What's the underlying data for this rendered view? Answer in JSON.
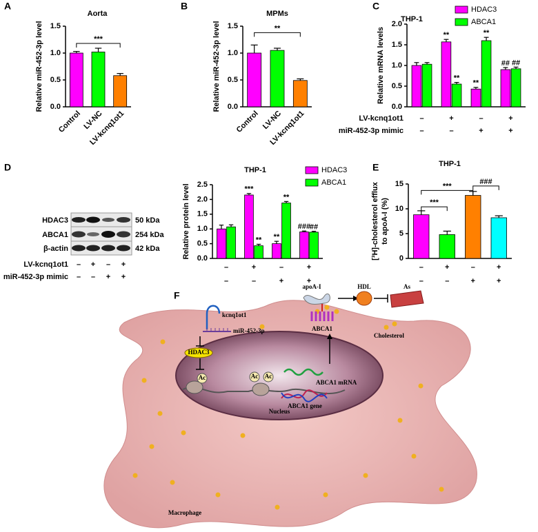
{
  "panels": [
    "A",
    "B",
    "C",
    "D",
    "E",
    "F"
  ],
  "chart_data": [
    {
      "type": "bar",
      "title": "Aorta",
      "ylabel": "Relative miR-452-3p level",
      "categories": [
        "Control",
        "LV-NC",
        "LV-kcnq1ot1"
      ],
      "values": [
        1.0,
        1.02,
        0.58
      ],
      "errors": [
        0.03,
        0.07,
        0.04
      ],
      "colors": [
        "#ff00ff",
        "#00ff00",
        "#ff8000"
      ],
      "annotations": [
        "***"
      ],
      "ylim": [
        0,
        1.5
      ],
      "yticks": [
        {
          "value": 0,
          "label": "0.0"
        },
        0.5,
        {
          "value": 1,
          "label": "1.0"
        },
        1.5
      ]
    },
    {
      "type": "bar",
      "title": "MPMs",
      "ylabel": "Relative miR-452-3p level",
      "categories": [
        "Control",
        "LV-NC",
        "LV-kcnq1ot1"
      ],
      "values": [
        1.0,
        1.05,
        0.49
      ],
      "errors": [
        0.15,
        0.04,
        0.03
      ],
      "colors": [
        "#ff00ff",
        "#00ff00",
        "#ff8000"
      ],
      "annotations": [
        "**"
      ],
      "ylim": [
        0,
        1.5
      ],
      "yticks": [
        {
          "value": 0,
          "label": "0.0"
        },
        0.5,
        {
          "value": 1,
          "label": "1.0"
        },
        1.5
      ]
    },
    {
      "type": "bar",
      "title": "THP-1",
      "ylabel": "Relative mRNA levels",
      "series": [
        {
          "name": "HDAC3",
          "color": "#ff00ff",
          "values": [
            1.0,
            1.57,
            0.43,
            0.9
          ],
          "errors": [
            0.07,
            0.06,
            0.04,
            0.05
          ],
          "marks": [
            null,
            "**",
            "**",
            "##"
          ]
        },
        {
          "name": "ABCA1",
          "color": "#00ff00",
          "values": [
            1.03,
            0.55,
            1.6,
            0.92
          ],
          "errors": [
            0.04,
            0.04,
            0.08,
            0.04
          ],
          "marks": [
            null,
            "**",
            "**",
            "##"
          ]
        }
      ],
      "treatments": [
        {
          "name": "LV-kcnq1ot1",
          "signs": [
            "–",
            "+",
            "–",
            "+"
          ]
        },
        {
          "name": "miR-452-3p mimic",
          "signs": [
            "–",
            "–",
            "+",
            "+"
          ]
        }
      ],
      "ylim": [
        0,
        2
      ],
      "yticks": [
        {
          "value": 0,
          "label": "0.0"
        },
        0.5,
        {
          "value": 1,
          "label": "1.0"
        },
        1.5,
        {
          "value": 2,
          "label": "2.0"
        }
      ]
    },
    {
      "type": "bar",
      "title": "THP-1",
      "ylabel": "Relative protein level",
      "series": [
        {
          "name": "HDAC3",
          "color": "#ff00ff",
          "values": [
            1.0,
            2.15,
            0.5,
            0.9
          ],
          "errors": [
            0.13,
            0.05,
            0.08,
            0.03
          ],
          "marks": [
            null,
            "***",
            "**",
            "###"
          ]
        },
        {
          "name": "ABCA1",
          "color": "#00ff00",
          "values": [
            1.07,
            0.43,
            1.88,
            0.89
          ],
          "errors": [
            0.07,
            0.05,
            0.05,
            0.03
          ],
          "marks": [
            null,
            "**",
            "**",
            "##"
          ]
        }
      ],
      "treatments": [
        {
          "signs": [
            "–",
            "+",
            "–",
            "+"
          ]
        },
        {
          "signs": [
            "–",
            "–",
            "+",
            "+"
          ]
        }
      ],
      "ylim": [
        0,
        2.5
      ],
      "yticks": [
        {
          "value": 0,
          "label": "0.0"
        },
        0.5,
        {
          "value": 1,
          "label": "1.0"
        },
        1.5,
        {
          "value": 2,
          "label": "2.0"
        },
        2.5
      ]
    },
    {
      "type": "bar",
      "title": "THP-1",
      "ylabel": [
        "[³H]-cholesterol efflux",
        "to apoA-I (%)"
      ],
      "values": [
        8.8,
        4.8,
        12.7,
        8.2
      ],
      "errors": [
        0.8,
        0.7,
        0.8,
        0.4
      ],
      "colors": [
        "#ff00ff",
        "#00ff00",
        "#ff8000",
        "#00ffff"
      ],
      "annotations": [
        "***",
        "***",
        "###"
      ],
      "treatments": [
        {
          "signs": [
            "–",
            "+",
            "–",
            "+"
          ]
        },
        {
          "signs": [
            "–",
            "–",
            "+",
            "+"
          ]
        }
      ],
      "ylim": [
        0,
        15
      ],
      "yticks": [
        0,
        5,
        10,
        15
      ]
    }
  ],
  "blot": {
    "rows": [
      "HDAC3",
      "ABCA1",
      "β-actin"
    ],
    "sizes": [
      "50 kDa",
      "254 kDa",
      "42 kDa"
    ],
    "treatments": [
      {
        "name": "LV-kcnq1ot1",
        "signs": [
          "–",
          "+",
          "–",
          "+"
        ]
      },
      {
        "name": "miR-452-3p mimic",
        "signs": [
          "–",
          "–",
          "+",
          "+"
        ]
      }
    ]
  },
  "diagram": {
    "apoa1": "apoA-I",
    "hdl": "HDL",
    "as": "As",
    "kcnq1ot1": "kcnq1ot1",
    "mir": "miR-452-3p",
    "hdac3": "HDAC3",
    "ac": [
      "Ac",
      "Ac",
      "Ac"
    ],
    "abca1": "ABCA1",
    "cholesterol": "Cholesterol",
    "mrna": "ABCA1 mRNA",
    "gene": "ABCA1 gene",
    "nucleus": "Nucleus",
    "macrophage": "Macrophage"
  }
}
